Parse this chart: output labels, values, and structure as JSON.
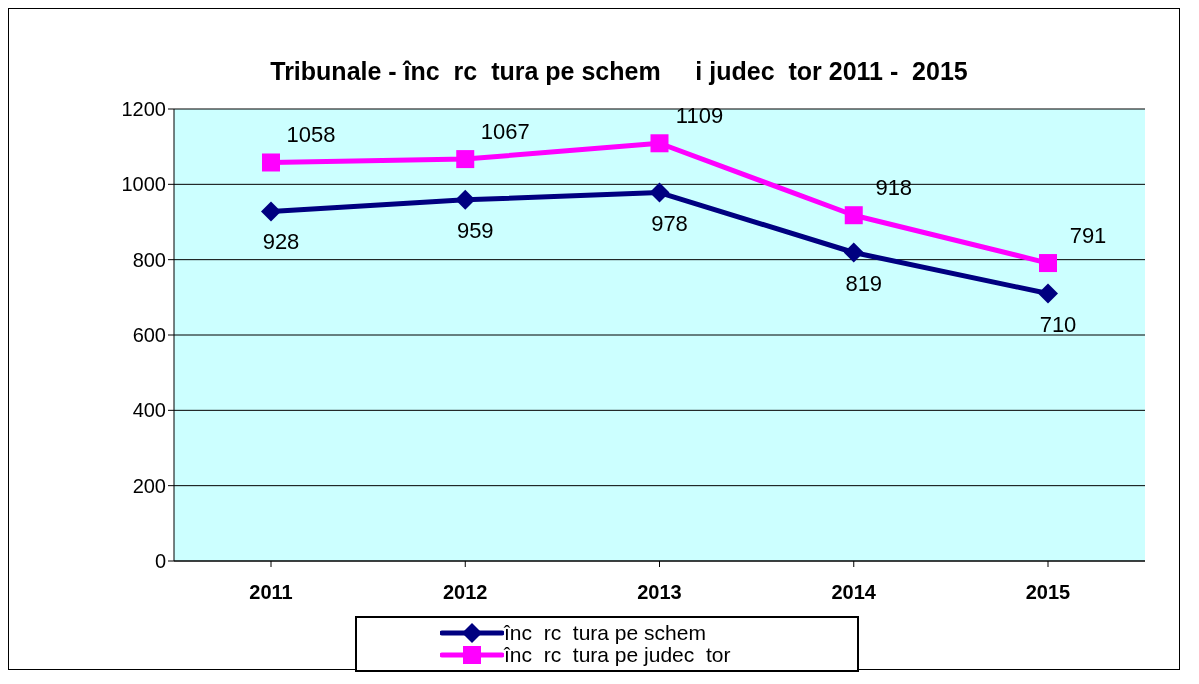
{
  "chart_data": {
    "type": "line",
    "title": "Tribunale - înc  rc  tura pe schem     i judec  tor 2011 -  2015",
    "categories": [
      "2011",
      "2012",
      "2013",
      "2014",
      "2015"
    ],
    "series": [
      {
        "name": "înc  rc  tura pe schem",
        "color": "#000080",
        "values": [
          928,
          959,
          978,
          819,
          710
        ],
        "marker": "diamond"
      },
      {
        "name": "înc  rc  tura pe judec  tor",
        "color": "#ff00ff",
        "values": [
          1058,
          1067,
          1109,
          918,
          791
        ],
        "marker": "square"
      }
    ],
    "ylim": [
      0,
      1200
    ],
    "yticks": [
      0,
      200,
      400,
      600,
      800,
      1000,
      1200
    ],
    "grid": "y",
    "legend": "bottom",
    "data_labels": true
  }
}
